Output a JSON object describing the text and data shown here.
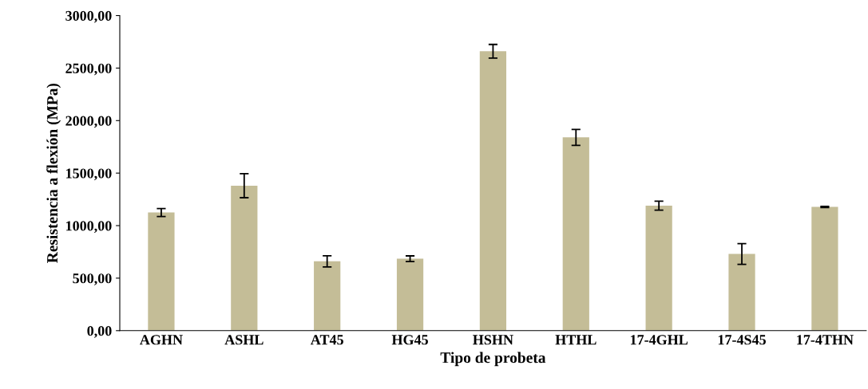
{
  "chart_data": {
    "type": "bar",
    "xlabel": "Tipo de probeta",
    "ylabel": "Resistencia a flexión (MPa)",
    "categories": [
      "AGHN",
      "ASHL",
      "AT45",
      "HG45",
      "HSHN",
      "HTHL",
      "17-4GHL",
      "17-4S45",
      "17-4THN"
    ],
    "values": [
      1125,
      1380,
      660,
      685,
      2660,
      1840,
      1190,
      730,
      1178
    ],
    "errors": [
      38,
      114,
      53,
      27,
      65,
      76,
      42,
      99,
      5
    ],
    "color": "#c4bd97",
    "ylim": [
      0,
      3000
    ],
    "yticks": [
      {
        "value": 0,
        "label": "0,00"
      },
      {
        "value": 500,
        "label": "500,00"
      },
      {
        "value": 1000,
        "label": "1000,00"
      },
      {
        "value": 1500,
        "label": "1500,00"
      },
      {
        "value": 2000,
        "label": "2000,00"
      },
      {
        "value": 2500,
        "label": "2500,00"
      },
      {
        "value": 3000,
        "label": "3000,00"
      }
    ],
    "grid": false,
    "legend": false
  }
}
